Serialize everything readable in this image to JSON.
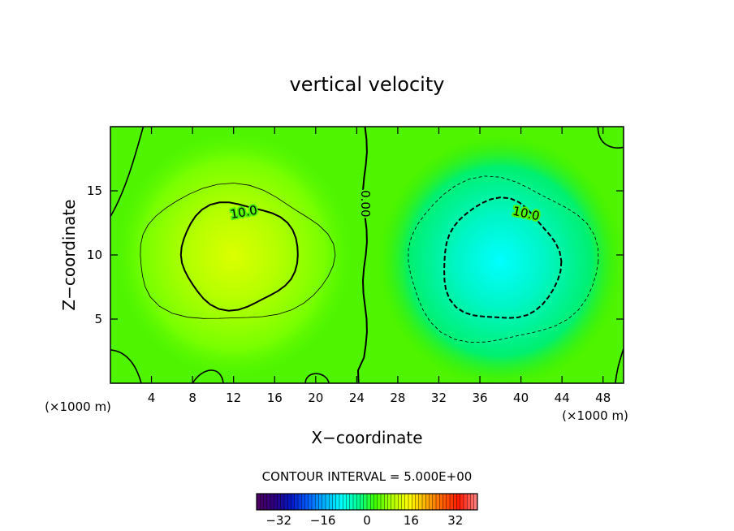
{
  "chart_data": {
    "type": "contour",
    "title": "vertical velocity",
    "xlabel": "X−coordinate",
    "ylabel": "Z−coordinate",
    "x_unit_left": "(×1000 m)",
    "x_unit_right": "(×1000 m)",
    "xlim": [
      0,
      50
    ],
    "ylim": [
      0,
      20
    ],
    "x_ticks": [
      4,
      8,
      12,
      16,
      20,
      24,
      28,
      32,
      36,
      40,
      44,
      48
    ],
    "y_ticks": [
      5,
      10,
      15
    ],
    "grid": false,
    "field": {
      "updraft": {
        "x": 12,
        "z": 10,
        "peak": 15
      },
      "downdraft": {
        "x": 38,
        "z": 9.5,
        "peak": -15
      }
    },
    "contour_interval_text": "CONTOUR INTERVAL = 5.000E+00",
    "contour_interval": 5,
    "contour_labels": [
      {
        "text": "10.0",
        "x": 13,
        "z": 13.3
      },
      {
        "text": "0.00",
        "x": 24.8,
        "z": 14
      },
      {
        "text": "10.0",
        "x": 40.5,
        "z": 13.2
      }
    ],
    "colorbar": {
      "min": -40,
      "max": 40,
      "ticks": [
        "−32",
        "−16",
        "0",
        "16",
        "32"
      ],
      "tick_values": [
        -32,
        -16,
        0,
        16,
        32
      ],
      "palette": [
        "#4b0063",
        "#2a0080",
        "#0018c8",
        "#0060ff",
        "#00b4ff",
        "#00ffff",
        "#00ff90",
        "#40ff00",
        "#b0ff00",
        "#ffff00",
        "#ffb000",
        "#ff6000",
        "#ff1800",
        "#ff7a7a"
      ]
    }
  }
}
